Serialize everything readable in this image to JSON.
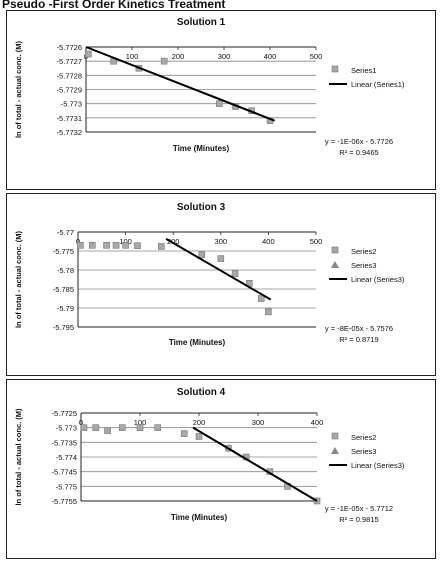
{
  "page_heading": "Pseudo -First Order Kinetics Treatment",
  "chart_data": [
    {
      "type": "scatter",
      "title": "Solution 1",
      "xlabel": "Time (Minutes)",
      "ylabel": "ln of total - actual conc. (M)",
      "xlim": [
        0,
        500
      ],
      "ylim": [
        -5.7732,
        -5.7726
      ],
      "xticks": [
        0,
        100,
        200,
        300,
        400,
        500
      ],
      "xtick_labels": [
        "0",
        "100",
        "200",
        "300",
        "400",
        "500"
      ],
      "yticks": [
        -5.7726,
        -5.7727,
        -5.7728,
        -5.7729,
        -5.773,
        -5.7731,
        -5.7732
      ],
      "ytick_labels": [
        "-5.7726",
        "-5.7727",
        "-5.7728",
        "-5.7729",
        "-5.773",
        "-5.7731",
        "-5.7732"
      ],
      "series": [
        {
          "name": "Series1",
          "kind": "points",
          "x": [
            5,
            60,
            115,
            170,
            290,
            325,
            360,
            400
          ],
          "y": [
            -5.77265,
            -5.7727,
            -5.77275,
            -5.7727,
            -5.773,
            -5.77302,
            -5.77305,
            -5.77312
          ]
        },
        {
          "name": "Linear (Series1)",
          "kind": "trendline",
          "x": [
            0,
            410
          ],
          "y": [
            -5.7726,
            -5.77312
          ]
        }
      ],
      "equation": "y = -1E-06x - 5.7726",
      "r2": "R² = 0.9465",
      "legend_position": "right",
      "grid": "horizontal"
    },
    {
      "type": "scatter",
      "title": "Solution 3",
      "xlabel": "Time (Minutes)",
      "ylabel": "ln of total - actual conc. (M)",
      "xlim": [
        0,
        500
      ],
      "ylim": [
        -5.795,
        -5.77
      ],
      "xticks": [
        0,
        100,
        200,
        300,
        400,
        500
      ],
      "xtick_labels": [
        "0",
        "100",
        "200",
        "300",
        "400",
        "500"
      ],
      "yticks": [
        -5.77,
        -5.775,
        -5.78,
        -5.785,
        -5.79,
        -5.795
      ],
      "ytick_labels": [
        "-5.77",
        "-5.775",
        "-5.78",
        "-5.785",
        "-5.79",
        "-5.795"
      ],
      "series": [
        {
          "name": "Series2",
          "kind": "points",
          "x": [
            5,
            30,
            60,
            80,
            100,
            125,
            175,
            260,
            300,
            330,
            360,
            385,
            400
          ],
          "y": [
            -5.7735,
            -5.7735,
            -5.7735,
            -5.7735,
            -5.7735,
            -5.7736,
            -5.7738,
            -5.776,
            -5.777,
            -5.781,
            -5.7835,
            -5.7875,
            -5.791
          ]
        },
        {
          "name": "Series3",
          "kind": "points",
          "x": [],
          "y": []
        },
        {
          "name": "Linear (Series3)",
          "kind": "trendline",
          "x": [
            185,
            405
          ],
          "y": [
            -5.7718,
            -5.7878
          ]
        }
      ],
      "equation": "y = -8E-05x - 5.7576",
      "r2": "R² = 0.8719",
      "legend_position": "right",
      "grid": "horizontal"
    },
    {
      "type": "scatter",
      "title": "Solution 4",
      "xlabel": "Time (Minutes)",
      "ylabel": "ln of total - actual conc. (M)",
      "xlim": [
        0,
        400
      ],
      "ylim": [
        -5.7755,
        -5.7725
      ],
      "xticks": [
        0,
        100,
        200,
        300,
        400
      ],
      "xtick_labels": [
        "0",
        "100",
        "200",
        "300",
        "400"
      ],
      "yticks": [
        -5.7725,
        -5.773,
        -5.7735,
        -5.774,
        -5.7745,
        -5.775,
        -5.7755
      ],
      "ytick_labels": [
        "-5.7725",
        "-5.773",
        "-5.7735",
        "-5.774",
        "-5.7745",
        "-5.775",
        "-5.7755"
      ],
      "series": [
        {
          "name": "Series2",
          "kind": "points",
          "x": [
            5,
            25,
            45,
            70,
            100,
            130,
            175,
            200,
            250,
            280,
            320,
            350,
            400
          ],
          "y": [
            -5.773,
            -5.773,
            -5.7731,
            -5.773,
            -5.773,
            -5.773,
            -5.7732,
            -5.7733,
            -5.7737,
            -5.774,
            -5.7745,
            -5.775,
            -5.7755
          ]
        },
        {
          "name": "Series3",
          "kind": "points",
          "x": [],
          "y": []
        },
        {
          "name": "Linear (Series3)",
          "kind": "trendline",
          "x": [
            190,
            400
          ],
          "y": [
            -5.773,
            -5.7755
          ]
        }
      ],
      "equation": "y = -1E-05x - 5.7712",
      "r2": "R² = 0.9815",
      "legend_position": "right",
      "grid": "horizontal"
    }
  ]
}
